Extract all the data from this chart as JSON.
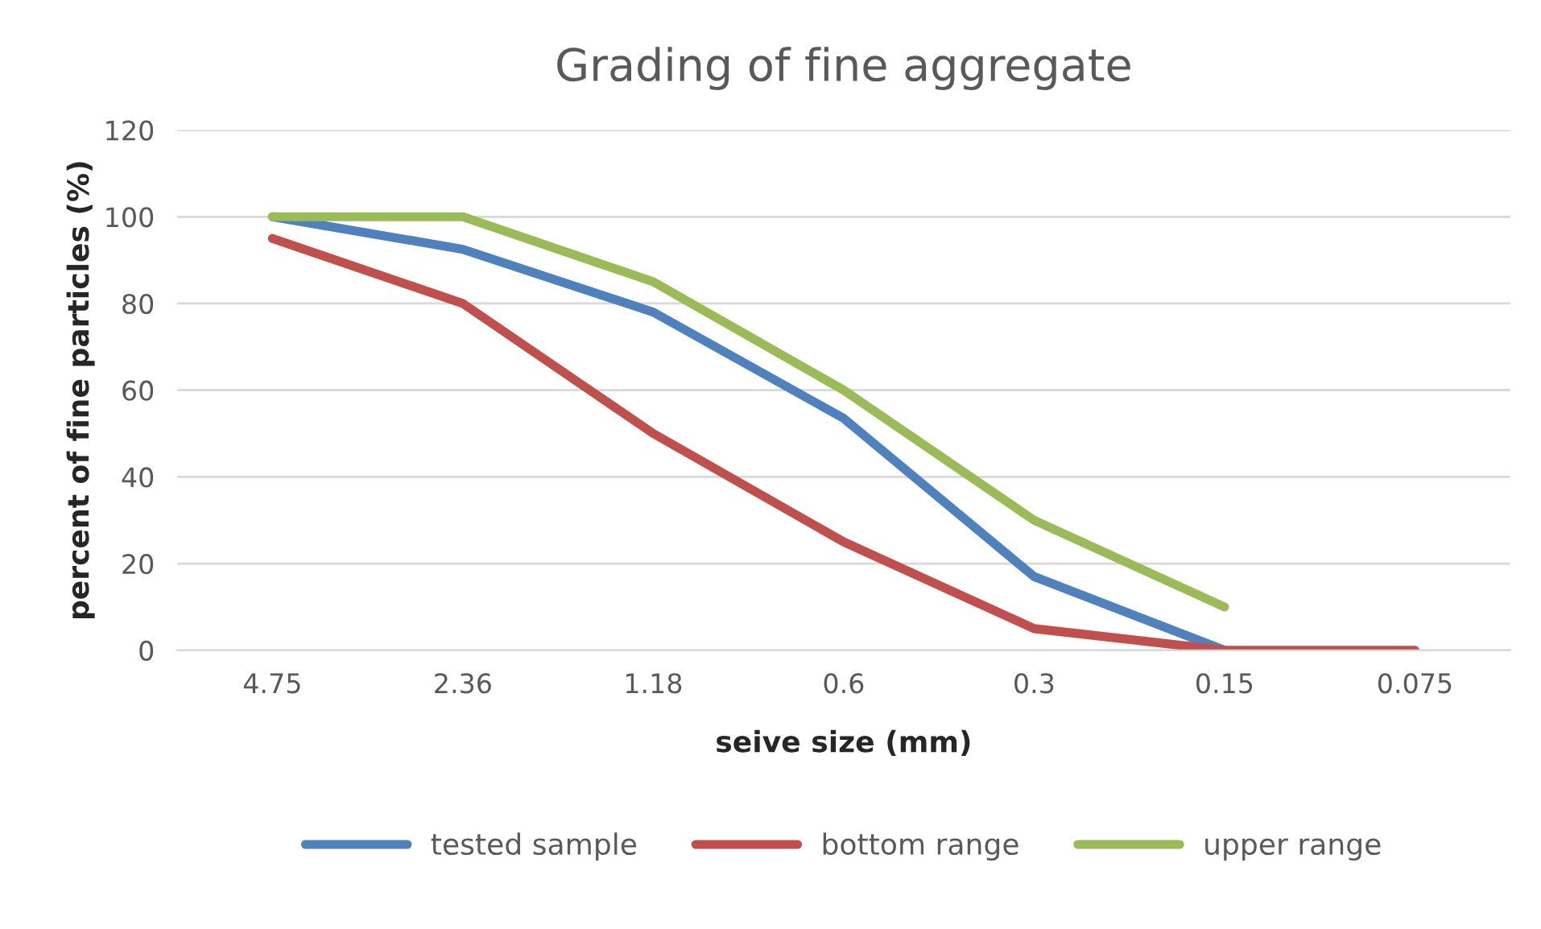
{
  "chart_data": {
    "type": "line",
    "title": "Grading of fine aggregate",
    "xlabel": "seive size (mm)",
    "ylabel": "percent of fine particles (%)",
    "categories": [
      "4.75",
      "2.36",
      "1.18",
      "0.6",
      "0.3",
      "0.15",
      "0.075"
    ],
    "series": [
      {
        "name": "tested sample",
        "color": "#4f81bd",
        "values": [
          100,
          92.5,
          78,
          53.5,
          17,
          0,
          null
        ]
      },
      {
        "name": "bottom range",
        "color": "#c0504d",
        "values": [
          95,
          80,
          50,
          25,
          5,
          0,
          0
        ]
      },
      {
        "name": "upper range",
        "color": "#9bbb59",
        "values": [
          100,
          100,
          85,
          60,
          30,
          10,
          null
        ]
      }
    ],
    "ylim": [
      0,
      120
    ],
    "yticks": [
      0,
      20,
      40,
      60,
      80,
      100,
      120
    ],
    "grid": "y",
    "legend": "bottom",
    "marker": "none",
    "line_style": "solid"
  }
}
